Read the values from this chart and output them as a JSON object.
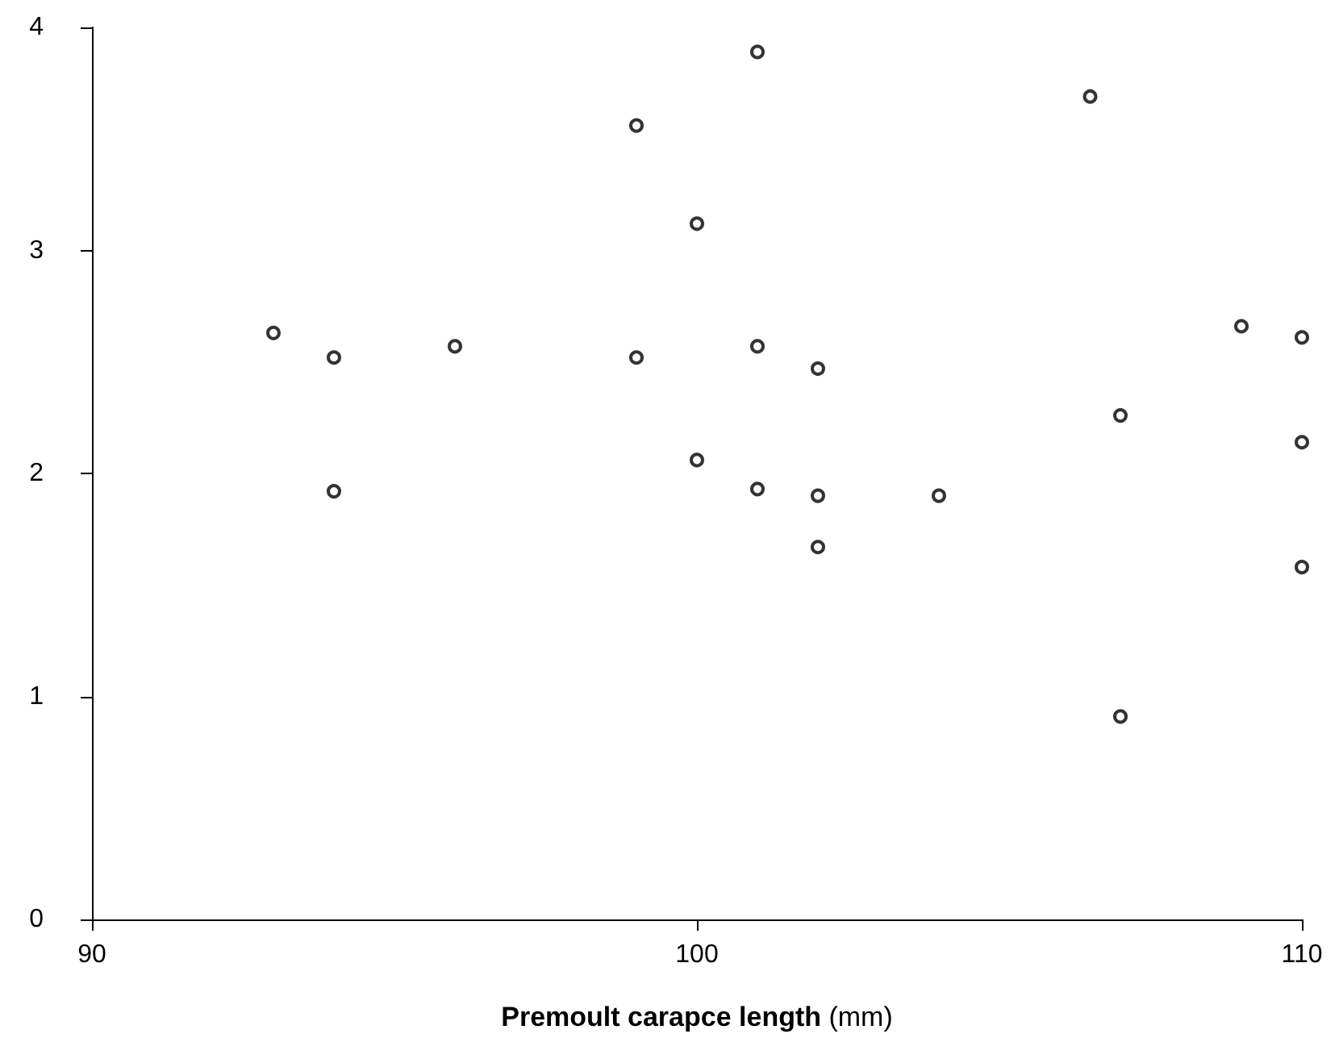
{
  "chart_data": {
    "type": "scatter",
    "xlabel": "Premoult carapce length (mm)",
    "x": [
      93,
      94,
      94,
      96,
      99,
      99,
      100,
      100,
      101,
      101,
      101,
      102,
      102,
      102,
      104,
      106.5,
      107,
      107,
      109,
      110,
      110,
      110
    ],
    "values": [
      2.63,
      2.52,
      1.92,
      2.57,
      3.56,
      2.52,
      3.12,
      2.06,
      3.89,
      2.57,
      1.93,
      2.47,
      1.9,
      1.67,
      1.9,
      3.69,
      2.26,
      0.91,
      2.66,
      2.61,
      2.14,
      1.58
    ],
    "color": "#000000",
    "marker": "circle",
    "grid": false,
    "xlim": [
      90,
      110
    ],
    "xticks": [
      90,
      100,
      110
    ],
    "ylim": [
      0,
      4
    ],
    "yticks": [
      0,
      1,
      2,
      3,
      4
    ]
  }
}
